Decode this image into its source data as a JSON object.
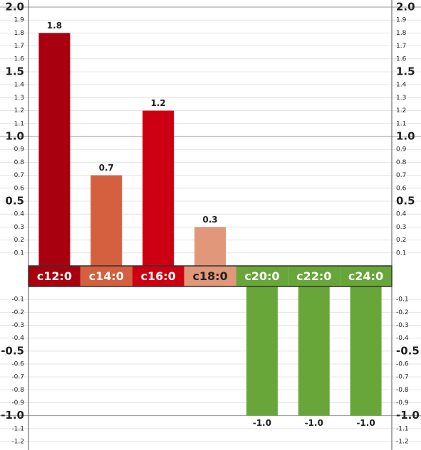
{
  "chart_data": {
    "type": "bar",
    "categories": [
      "c12:0",
      "c14:0",
      "c16:0",
      "c18:0",
      "c20:0",
      "c22:0",
      "c24:0"
    ],
    "values": [
      1.8,
      0.7,
      1.2,
      0.3,
      -1,
      -1,
      -1
    ],
    "value_labels": [
      "1.8",
      "0.7",
      "1.2",
      "0.3",
      "-1.0",
      "-1.0",
      "-1.0"
    ],
    "colors": [
      "#a8000f",
      "#d4603f",
      "#cc0012",
      "#e0977a",
      "#69a63a",
      "#69a63a",
      "#69a63a"
    ],
    "ylim": [
      -1.2,
      2
    ],
    "yticks": [
      -1.2,
      -1.1,
      {
        "value": -1,
        "label": "-1.0"
      },
      -0.9,
      -0.8,
      -0.7,
      -0.6,
      -0.5,
      -0.4,
      -0.3,
      -0.2,
      -0.1,
      0.1,
      0.2,
      0.3,
      0.4,
      0.5,
      0.6,
      0.7,
      0.8,
      0.9,
      {
        "value": 1,
        "label": "1.0"
      },
      1.1,
      1.2,
      1.3,
      1.4,
      1.5,
      1.6,
      1.7,
      1.8,
      1.9,
      {
        "value": 2,
        "label": "2.0"
      }
    ],
    "grid": true
  }
}
